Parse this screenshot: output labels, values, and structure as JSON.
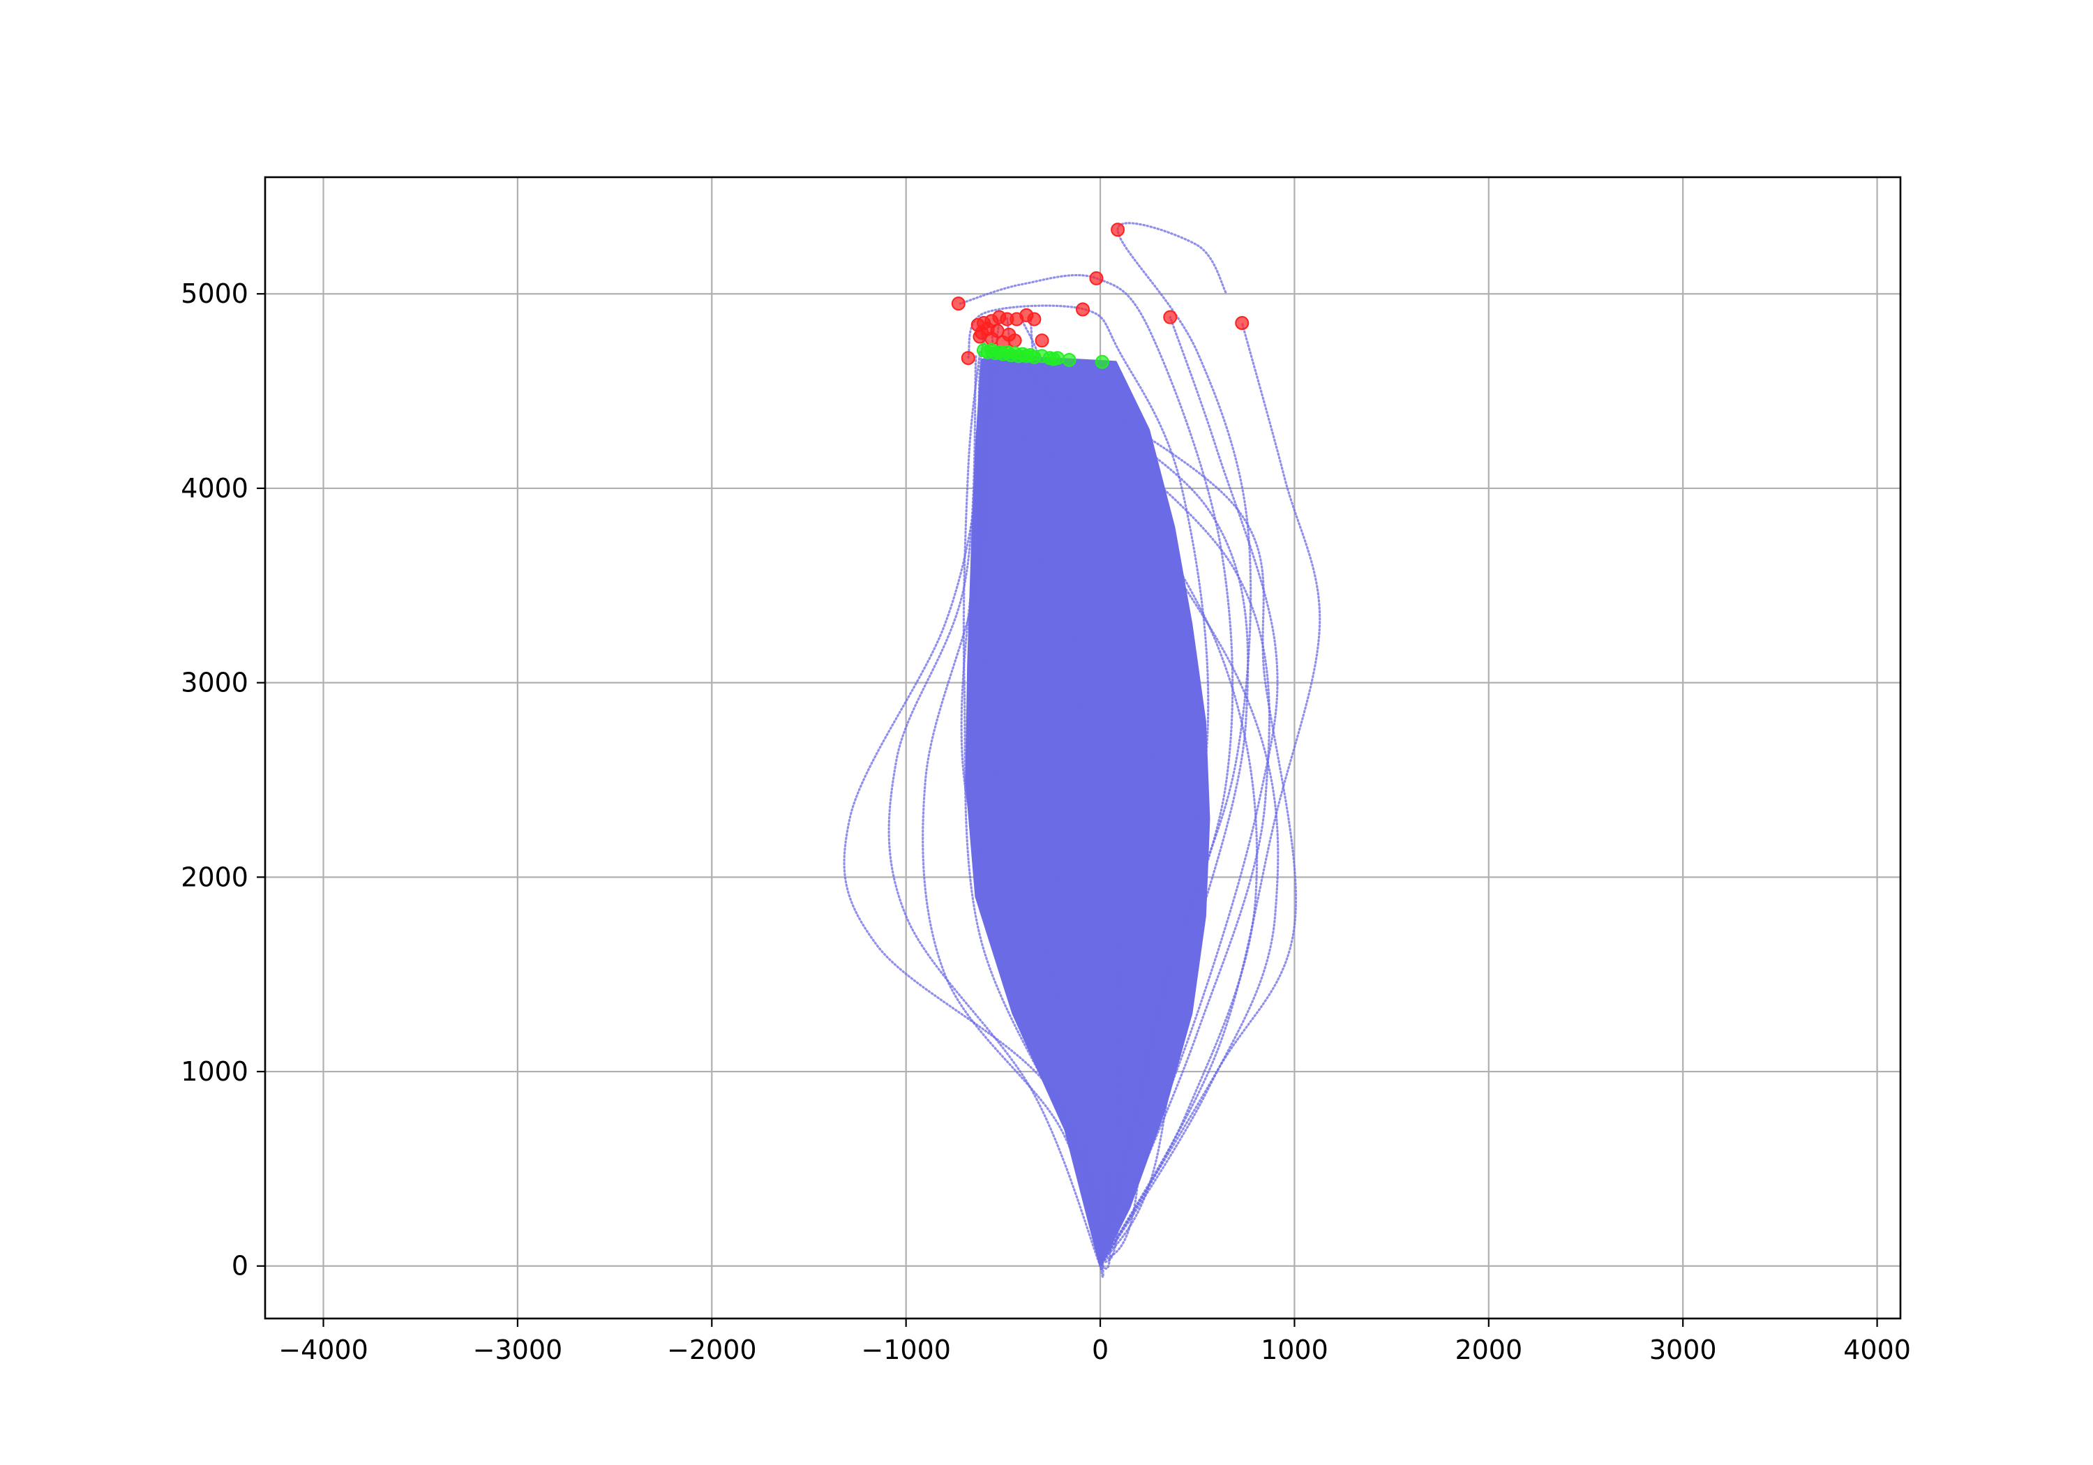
{
  "chart_data": {
    "type": "scatter",
    "title": "",
    "xlabel": "",
    "ylabel": "",
    "xlim": [
      -4300,
      4120
    ],
    "ylim": [
      -270,
      5600
    ],
    "grid": true,
    "x_ticks": [
      -4000,
      -3000,
      -2000,
      -1000,
      0,
      1000,
      2000,
      3000,
      4000
    ],
    "x_tick_labels": [
      "−4000",
      "−3000",
      "−2000",
      "−1000",
      "0",
      "1000",
      "2000",
      "3000",
      "4000"
    ],
    "y_ticks": [
      0,
      1000,
      2000,
      3000,
      4000,
      5000
    ],
    "y_tick_labels": [
      "0",
      "1000",
      "2000",
      "3000",
      "4000",
      "5000"
    ],
    "colors": {
      "trajectory": "#6b6be6",
      "red_points": "#ff2020",
      "green_points": "#22ee22"
    },
    "trajectory_origin": [
      0,
      0
    ],
    "series": [
      {
        "role": "trajectories",
        "color": "#6b6be6",
        "curves": [
          [
            [
              0,
              0
            ],
            [
              -250,
              900
            ],
            [
              -1150,
              1650
            ],
            [
              -1290,
              2300
            ],
            [
              -800,
              3300
            ],
            [
              -620,
              4100
            ],
            [
              -600,
              4650
            ]
          ],
          [
            [
              0,
              0
            ],
            [
              -350,
              900
            ],
            [
              -1000,
              1800
            ],
            [
              -1050,
              2600
            ],
            [
              -700,
              3500
            ],
            [
              -640,
              4680
            ]
          ],
          [
            [
              0,
              0
            ],
            [
              -200,
              700
            ],
            [
              -800,
              1500
            ],
            [
              -900,
              2500
            ],
            [
              -620,
              3600
            ],
            [
              -580,
              4700
            ]
          ],
          [
            [
              0,
              0
            ],
            [
              -120,
              600
            ],
            [
              -620,
              1700
            ],
            [
              -700,
              3000
            ],
            [
              -680,
              4100
            ],
            [
              -620,
              4700
            ]
          ],
          [
            [
              0,
              0
            ],
            [
              -80,
              500
            ],
            [
              -600,
              2000
            ],
            [
              -650,
              3500
            ],
            [
              -560,
              4710
            ]
          ],
          [
            [
              0,
              0
            ],
            [
              -50,
              400
            ],
            [
              -500,
              2200
            ],
            [
              -620,
              3800
            ],
            [
              -520,
              4700
            ]
          ],
          [
            [
              0,
              0
            ],
            [
              -30,
              300
            ],
            [
              -400,
              2400
            ],
            [
              -560,
              4000
            ],
            [
              -480,
              4690
            ]
          ],
          [
            [
              0,
              0
            ],
            [
              -20,
              250
            ],
            [
              -300,
              2600
            ],
            [
              -480,
              4100
            ],
            [
              -420,
              4680
            ]
          ],
          [
            [
              0,
              0
            ],
            [
              0,
              200
            ],
            [
              -200,
              2700
            ],
            [
              -380,
              4200
            ],
            [
              -360,
              4680
            ]
          ],
          [
            [
              0,
              0
            ],
            [
              50,
              300
            ],
            [
              -100,
              2900
            ],
            [
              -260,
              4300
            ],
            [
              -300,
              4670
            ]
          ],
          [
            [
              0,
              0
            ],
            [
              100,
              400
            ],
            [
              50,
              3000
            ],
            [
              -150,
              4400
            ],
            [
              -240,
              4665
            ]
          ],
          [
            [
              0,
              0
            ],
            [
              200,
              500
            ],
            [
              250,
              3100
            ],
            [
              -60,
              4450
            ],
            [
              -160,
              4660
            ]
          ],
          [
            [
              0,
              0
            ],
            [
              300,
              600
            ],
            [
              500,
              2500
            ],
            [
              350,
              3600
            ],
            [
              10,
              4650
            ]
          ],
          [
            [
              0,
              0
            ],
            [
              450,
              800
            ],
            [
              800,
              1900
            ],
            [
              600,
              3200
            ],
            [
              -300,
              4650
            ]
          ],
          [
            [
              0,
              0
            ],
            [
              550,
              900
            ],
            [
              900,
              1800
            ],
            [
              720,
              3000
            ],
            [
              -420,
              4690
            ]
          ],
          [
            [
              0,
              0
            ],
            [
              600,
              1000
            ],
            [
              1000,
              1750
            ],
            [
              850,
              3000
            ],
            [
              700,
              3900
            ],
            [
              -500,
              4700
            ]
          ],
          [
            [
              0,
              0
            ],
            [
              500,
              1200
            ],
            [
              850,
              2400
            ],
            [
              680,
              3600
            ],
            [
              -540,
              4700
            ]
          ],
          [
            [
              0,
              0
            ],
            [
              400,
              1400
            ],
            [
              750,
              2800
            ],
            [
              550,
              3900
            ],
            [
              -580,
              4710
            ]
          ],
          [
            [
              0,
              0
            ],
            [
              600,
              1100
            ],
            [
              900,
              2300
            ],
            [
              1130,
              3300
            ],
            [
              950,
              4050
            ],
            [
              730,
              4850
            ]
          ],
          [
            [
              0,
              0
            ],
            [
              500,
              1300
            ],
            [
              820,
              2400
            ],
            [
              900,
              3200
            ],
            [
              600,
              4200
            ],
            [
              360,
              4880
            ]
          ],
          [
            [
              0,
              0
            ],
            [
              350,
              1500
            ],
            [
              700,
              2600
            ],
            [
              760,
              3800
            ],
            [
              500,
              4700
            ],
            [
              90,
              5330
            ],
            [
              500,
              5250
            ],
            [
              650,
              5000
            ]
          ],
          [
            [
              0,
              0
            ],
            [
              300,
              1300
            ],
            [
              650,
              2500
            ],
            [
              620,
              3700
            ],
            [
              260,
              4800
            ],
            [
              -20,
              5080
            ],
            [
              -400,
              5050
            ],
            [
              -720,
              4950
            ]
          ],
          [
            [
              0,
              0
            ],
            [
              250,
              1100
            ],
            [
              550,
              2700
            ],
            [
              420,
              4000
            ],
            [
              100,
              4700
            ],
            [
              -80,
              4920
            ],
            [
              -600,
              4900
            ],
            [
              -680,
              4670
            ]
          ],
          [
            [
              0,
              0
            ],
            [
              -300,
              1200
            ],
            [
              -700,
              2500
            ],
            [
              -620,
              3900
            ],
            [
              -560,
              4500
            ],
            [
              -620,
              4840
            ]
          ],
          [
            [
              0,
              0
            ],
            [
              -200,
              1300
            ],
            [
              -550,
              2600
            ],
            [
              -600,
              4000
            ],
            [
              -520,
              4870
            ]
          ],
          [
            [
              0,
              0
            ],
            [
              100,
              1500
            ],
            [
              -100,
              3000
            ],
            [
              -400,
              4300
            ],
            [
              -480,
              4880
            ]
          ],
          [
            [
              0,
              0
            ],
            [
              200,
              1600
            ],
            [
              0,
              3100
            ],
            [
              -300,
              4400
            ],
            [
              -360,
              4880
            ]
          ],
          [
            [
              0,
              0
            ],
            [
              350,
              1700
            ],
            [
              150,
              3200
            ],
            [
              -250,
              4500
            ],
            [
              -400,
              4860
            ]
          ],
          [
            [
              0,
              0
            ],
            [
              150,
              1800
            ],
            [
              -200,
              3200
            ],
            [
              -500,
              4400
            ],
            [
              -560,
              4820
            ]
          ],
          [
            [
              0,
              0
            ],
            [
              -150,
              1700
            ],
            [
              -500,
              3000
            ],
            [
              -620,
              4300
            ],
            [
              -600,
              4800
            ]
          ]
        ],
        "fill_envelope": [
          [
            0,
            0
          ],
          [
            -180,
            700
          ],
          [
            -450,
            1300
          ],
          [
            -640,
            1900
          ],
          [
            -690,
            2500
          ],
          [
            -680,
            3100
          ],
          [
            -660,
            3700
          ],
          [
            -640,
            4200
          ],
          [
            -610,
            4660
          ],
          [
            -500,
            4700
          ],
          [
            -300,
            4670
          ],
          [
            -100,
            4660
          ],
          [
            80,
            4650
          ],
          [
            250,
            4300
          ],
          [
            380,
            3800
          ],
          [
            470,
            3300
          ],
          [
            540,
            2800
          ],
          [
            560,
            2300
          ],
          [
            540,
            1800
          ],
          [
            470,
            1300
          ],
          [
            330,
            800
          ],
          [
            150,
            300
          ],
          [
            0,
            0
          ]
        ]
      },
      {
        "role": "red_endpoints",
        "color": "#ff2020",
        "points": [
          [
            90,
            5330
          ],
          [
            -20,
            5080
          ],
          [
            -730,
            4950
          ],
          [
            -90,
            4920
          ],
          [
            360,
            4880
          ],
          [
            730,
            4850
          ],
          [
            -380,
            4890
          ],
          [
            -340,
            4870
          ],
          [
            -480,
            4870
          ],
          [
            -430,
            4870
          ],
          [
            -520,
            4880
          ],
          [
            -560,
            4860
          ],
          [
            -600,
            4850
          ],
          [
            -630,
            4840
          ],
          [
            -580,
            4820
          ],
          [
            -610,
            4800
          ],
          [
            -530,
            4810
          ],
          [
            -620,
            4780
          ],
          [
            -560,
            4770
          ],
          [
            -470,
            4790
          ],
          [
            -440,
            4760
          ],
          [
            -500,
            4750
          ],
          [
            -300,
            4760
          ],
          [
            -680,
            4670
          ]
        ]
      },
      {
        "role": "green_endpoints",
        "color": "#22ee22",
        "points": [
          [
            -600,
            4710
          ],
          [
            -580,
            4700
          ],
          [
            -560,
            4710
          ],
          [
            -540,
            4695
          ],
          [
            -520,
            4700
          ],
          [
            -500,
            4690
          ],
          [
            -480,
            4700
          ],
          [
            -460,
            4685
          ],
          [
            -440,
            4695
          ],
          [
            -420,
            4680
          ],
          [
            -400,
            4690
          ],
          [
            -380,
            4680
          ],
          [
            -360,
            4685
          ],
          [
            -340,
            4675
          ],
          [
            -300,
            4680
          ],
          [
            -260,
            4670
          ],
          [
            -240,
            4665
          ],
          [
            -220,
            4670
          ],
          [
            -160,
            4660
          ],
          [
            10,
            4650
          ]
        ]
      }
    ]
  }
}
